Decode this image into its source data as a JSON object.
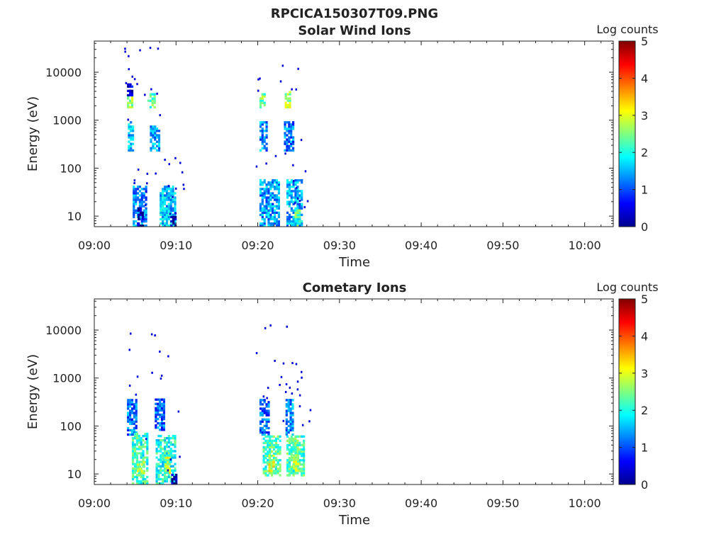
{
  "figure_title": "RPCICA150307T09.PNG",
  "colors": {
    "colormap": [
      "#00008f",
      "#0000ff",
      "#0080ff",
      "#00ffff",
      "#80ff80",
      "#ffff00",
      "#ff8000",
      "#ff0000",
      "#800000"
    ],
    "axis": "#222222"
  },
  "chart_data": [
    {
      "type": "heatmap",
      "title": "Solar Wind Ions",
      "xlabel": "Time",
      "ylabel": "Energy (eV)",
      "x_ticks": [
        "09:00",
        "09:10",
        "09:20",
        "09:30",
        "09:40",
        "09:50",
        "10:00"
      ],
      "y_ticks": [
        "10",
        "100",
        "1000",
        "10000"
      ],
      "xlim_minutes": [
        0,
        63.5
      ],
      "ylim_log10_eV": [
        0.78,
        4.65
      ],
      "y_scale": "log",
      "colorbar": {
        "label": "Log counts",
        "range": [
          0,
          5
        ],
        "ticks": [
          "0",
          "1",
          "2",
          "3",
          "4",
          "5"
        ]
      },
      "blobs": [
        {
          "t": [
            4.0,
            4.6
          ],
          "e_log": [
            3.25,
            3.5
          ],
          "v": 2.6
        },
        {
          "t": [
            4.0,
            4.6
          ],
          "e_log": [
            3.5,
            3.75
          ],
          "v": 0.5
        },
        {
          "t": [
            4.1,
            4.8
          ],
          "e_log": [
            2.35,
            2.95
          ],
          "v": 1.5
        },
        {
          "t": [
            4.7,
            6.3
          ],
          "e_log": [
            0.78,
            1.6
          ],
          "v": 1.3
        },
        {
          "t": [
            5.3,
            6.0
          ],
          "e_log": [
            0.78,
            1.15
          ],
          "v": 0.1
        },
        {
          "t": [
            6.5,
            7.4
          ],
          "e_log": [
            3.25,
            3.55
          ],
          "v": 2.3
        },
        {
          "t": [
            6.8,
            8.0
          ],
          "e_log": [
            2.35,
            2.85
          ],
          "v": 1.4
        },
        {
          "t": [
            8.0,
            10.0
          ],
          "e_log": [
            0.78,
            1.6
          ],
          "v": 1.6
        },
        {
          "t": [
            9.3,
            10.0
          ],
          "e_log": [
            0.78,
            1.0
          ],
          "v": 0.2
        },
        {
          "t": [
            20.2,
            20.8
          ],
          "e_log": [
            3.25,
            3.55
          ],
          "v": 2.4
        },
        {
          "t": [
            20.2,
            21.2
          ],
          "e_log": [
            2.35,
            2.95
          ],
          "v": 1.3
        },
        {
          "t": [
            20.2,
            22.5
          ],
          "e_log": [
            0.78,
            1.75
          ],
          "v": 1.4
        },
        {
          "t": [
            23.3,
            24.0
          ],
          "e_log": [
            3.25,
            3.6
          ],
          "v": 2.7
        },
        {
          "t": [
            23.2,
            24.3
          ],
          "e_log": [
            2.35,
            2.95
          ],
          "v": 1.2
        },
        {
          "t": [
            23.5,
            25.5
          ],
          "e_log": [
            0.78,
            1.75
          ],
          "v": 1.5
        },
        {
          "t": [
            24.5,
            25.2
          ],
          "e_log": [
            0.78,
            1.1
          ],
          "v": 2.2
        }
      ],
      "scatter_points": 60
    },
    {
      "type": "heatmap",
      "title": "Cometary Ions",
      "xlabel": "Time",
      "ylabel": "Energy (eV)",
      "x_ticks": [
        "09:00",
        "09:10",
        "09:20",
        "09:30",
        "09:40",
        "09:50",
        "10:00"
      ],
      "y_ticks": [
        "10",
        "100",
        "1000",
        "10000"
      ],
      "xlim_minutes": [
        0,
        63.5
      ],
      "ylim_log10_eV": [
        0.78,
        4.65
      ],
      "y_scale": "log",
      "colorbar": {
        "label": "Log counts",
        "range": [
          0,
          5
        ],
        "ticks": [
          "0",
          "1",
          "2",
          "3",
          "4",
          "5"
        ]
      },
      "blobs": [
        {
          "t": [
            4.0,
            5.2
          ],
          "e_log": [
            1.8,
            2.55
          ],
          "v": 1.2
        },
        {
          "t": [
            4.6,
            6.6
          ],
          "e_log": [
            0.78,
            1.85
          ],
          "v": 2.1
        },
        {
          "t": [
            5.2,
            6.0
          ],
          "e_log": [
            0.95,
            1.25
          ],
          "v": 2.7
        },
        {
          "t": [
            7.4,
            8.6
          ],
          "e_log": [
            1.9,
            2.55
          ],
          "v": 1.1
        },
        {
          "t": [
            7.5,
            10.0
          ],
          "e_log": [
            0.78,
            1.8
          ],
          "v": 2.0
        },
        {
          "t": [
            8.6,
            9.3
          ],
          "e_log": [
            1.0,
            1.35
          ],
          "v": 2.9
        },
        {
          "t": [
            9.4,
            10.0
          ],
          "e_log": [
            0.78,
            0.98
          ],
          "v": 0.2
        },
        {
          "t": [
            20.2,
            21.3
          ],
          "e_log": [
            1.8,
            2.55
          ],
          "v": 1.1
        },
        {
          "t": [
            20.6,
            22.8
          ],
          "e_log": [
            0.95,
            1.8
          ],
          "v": 2.2
        },
        {
          "t": [
            21.3,
            22.0
          ],
          "e_log": [
            1.0,
            1.4
          ],
          "v": 2.9
        },
        {
          "t": [
            23.4,
            24.4
          ],
          "e_log": [
            1.8,
            2.55
          ],
          "v": 1.3
        },
        {
          "t": [
            23.5,
            25.6
          ],
          "e_log": [
            0.95,
            1.8
          ],
          "v": 2.2
        },
        {
          "t": [
            24.3,
            25.0
          ],
          "e_log": [
            1.05,
            1.4
          ],
          "v": 2.8
        }
      ],
      "scatter_points": 45
    }
  ]
}
